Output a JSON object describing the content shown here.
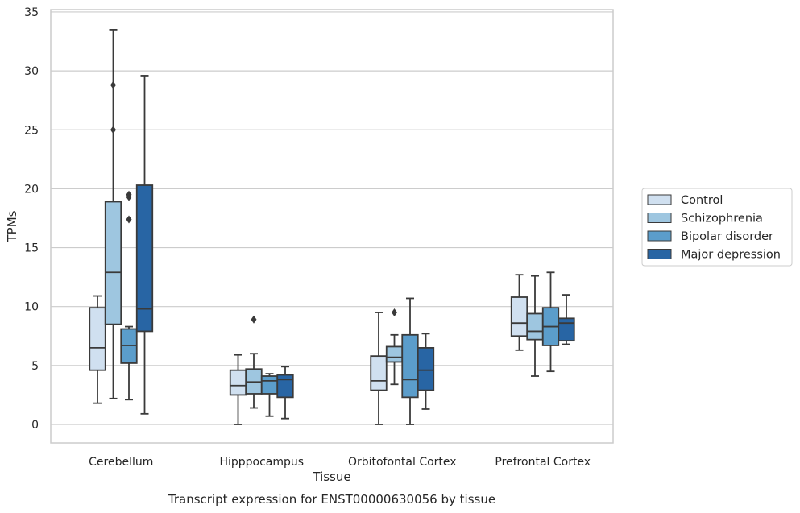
{
  "caption": "Transcript expression for ENST00000630056 by tissue",
  "chart_data": {
    "type": "boxplot",
    "xlabel": "Tissue",
    "ylabel": "TPMs",
    "ylim": [
      -1.5,
      35.3
    ],
    "yticks": [
      0,
      5,
      10,
      15,
      20,
      25,
      30,
      35
    ],
    "grid": "horizontal",
    "legend_position": "right",
    "categories": [
      "Cerebellum",
      "Hipppocampus",
      "Orbitofontal Cortex",
      "Prefrontal Cortex"
    ],
    "series": [
      {
        "name": "Control",
        "color": "#d0e0f0",
        "boxes": [
          {
            "whislo": 1.8,
            "q1": 4.6,
            "med": 6.5,
            "q3": 9.9,
            "whishi": 10.9,
            "fliers": []
          },
          {
            "whislo": 0.0,
            "q1": 2.5,
            "med": 3.3,
            "q3": 4.6,
            "whishi": 5.9,
            "fliers": []
          },
          {
            "whislo": 0.0,
            "q1": 2.9,
            "med": 3.7,
            "q3": 5.8,
            "whishi": 9.5,
            "fliers": []
          },
          {
            "whislo": 6.3,
            "q1": 7.5,
            "med": 8.6,
            "q3": 10.8,
            "whishi": 12.7,
            "fliers": []
          }
        ]
      },
      {
        "name": "Schizophrenia",
        "color": "#9ec6e0",
        "boxes": [
          {
            "whislo": 2.2,
            "q1": 8.5,
            "med": 12.9,
            "q3": 18.9,
            "whishi": 33.5,
            "fliers": [
              28.8,
              25.0
            ]
          },
          {
            "whislo": 1.4,
            "q1": 2.6,
            "med": 3.6,
            "q3": 4.7,
            "whishi": 6.0,
            "fliers": [
              8.9
            ]
          },
          {
            "whislo": 3.4,
            "q1": 5.3,
            "med": 5.7,
            "q3": 6.6,
            "whishi": 7.6,
            "fliers": [
              9.5
            ]
          },
          {
            "whislo": 4.1,
            "q1": 7.2,
            "med": 7.9,
            "q3": 9.4,
            "whishi": 12.6,
            "fliers": []
          }
        ]
      },
      {
        "name": "Bipolar disorder",
        "color": "#5b9dcb",
        "boxes": [
          {
            "whislo": 2.1,
            "q1": 5.2,
            "med": 6.7,
            "q3": 8.1,
            "whishi": 8.3,
            "fliers": [
              19.5,
              19.3,
              17.4
            ]
          },
          {
            "whislo": 0.7,
            "q1": 2.6,
            "med": 3.7,
            "q3": 4.1,
            "whishi": 4.3,
            "fliers": []
          },
          {
            "whislo": 0.0,
            "q1": 2.3,
            "med": 3.8,
            "q3": 7.6,
            "whishi": 10.7,
            "fliers": []
          },
          {
            "whislo": 4.5,
            "q1": 6.7,
            "med": 8.3,
            "q3": 9.9,
            "whishi": 12.9,
            "fliers": []
          }
        ]
      },
      {
        "name": "Major depression",
        "color": "#2865a4",
        "boxes": [
          {
            "whislo": 0.9,
            "q1": 7.9,
            "med": 9.8,
            "q3": 20.3,
            "whishi": 29.6,
            "fliers": []
          },
          {
            "whislo": 0.5,
            "q1": 2.3,
            "med": 3.8,
            "q3": 4.2,
            "whishi": 4.9,
            "fliers": []
          },
          {
            "whislo": 1.3,
            "q1": 2.9,
            "med": 4.6,
            "q3": 6.5,
            "whishi": 7.7,
            "fliers": []
          },
          {
            "whislo": 6.8,
            "q1": 7.1,
            "med": 8.6,
            "q3": 9.0,
            "whishi": 11.0,
            "fliers": []
          }
        ]
      }
    ]
  }
}
